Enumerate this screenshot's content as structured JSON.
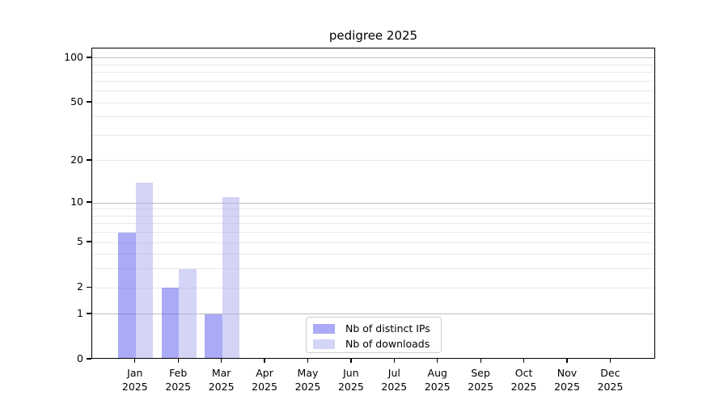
{
  "figure": {
    "background": "#ffffff",
    "text_color": "#000000"
  },
  "chart_data": {
    "type": "bar",
    "title": "pedigree 2025",
    "categories": [
      {
        "month": "Jan",
        "year": "2025"
      },
      {
        "month": "Feb",
        "year": "2025"
      },
      {
        "month": "Mar",
        "year": "2025"
      },
      {
        "month": "Apr",
        "year": "2025"
      },
      {
        "month": "May",
        "year": "2025"
      },
      {
        "month": "Jun",
        "year": "2025"
      },
      {
        "month": "Jul",
        "year": "2025"
      },
      {
        "month": "Aug",
        "year": "2025"
      },
      {
        "month": "Sep",
        "year": "2025"
      },
      {
        "month": "Oct",
        "year": "2025"
      },
      {
        "month": "Nov",
        "year": "2025"
      },
      {
        "month": "Dec",
        "year": "2025"
      }
    ],
    "series": [
      {
        "name": "Nb of distinct IPs",
        "color": "rgba(85,85,238,0.5)",
        "values": [
          6,
          2,
          1,
          0,
          0,
          0,
          0,
          0,
          0,
          0,
          0,
          0
        ]
      },
      {
        "name": "Nb of downloads",
        "color": "rgba(170,170,238,0.5)",
        "values": [
          14,
          3,
          11,
          0,
          0,
          0,
          0,
          0,
          0,
          0,
          0,
          0
        ]
      }
    ],
    "xlabel": "",
    "ylabel": "",
    "yscale": "log10(1+y)",
    "ylim": [
      0,
      116
    ],
    "yticks": [
      0,
      1,
      2,
      5,
      10,
      20,
      50,
      100
    ],
    "ytick_labels": [
      "0",
      "1",
      "2",
      "5",
      "10",
      "20",
      "50",
      "100"
    ],
    "grid": {
      "on": true,
      "major_values": [
        1,
        10,
        100
      ],
      "minor_values": [
        2,
        3,
        4,
        5,
        6,
        7,
        8,
        9,
        20,
        30,
        40,
        50,
        60,
        70,
        80,
        90
      ],
      "major_color": "#bdbdbd",
      "minor_color": "#e9e9e9"
    },
    "legend": {
      "position": "lower-center",
      "border_color": "#cccccc"
    }
  }
}
